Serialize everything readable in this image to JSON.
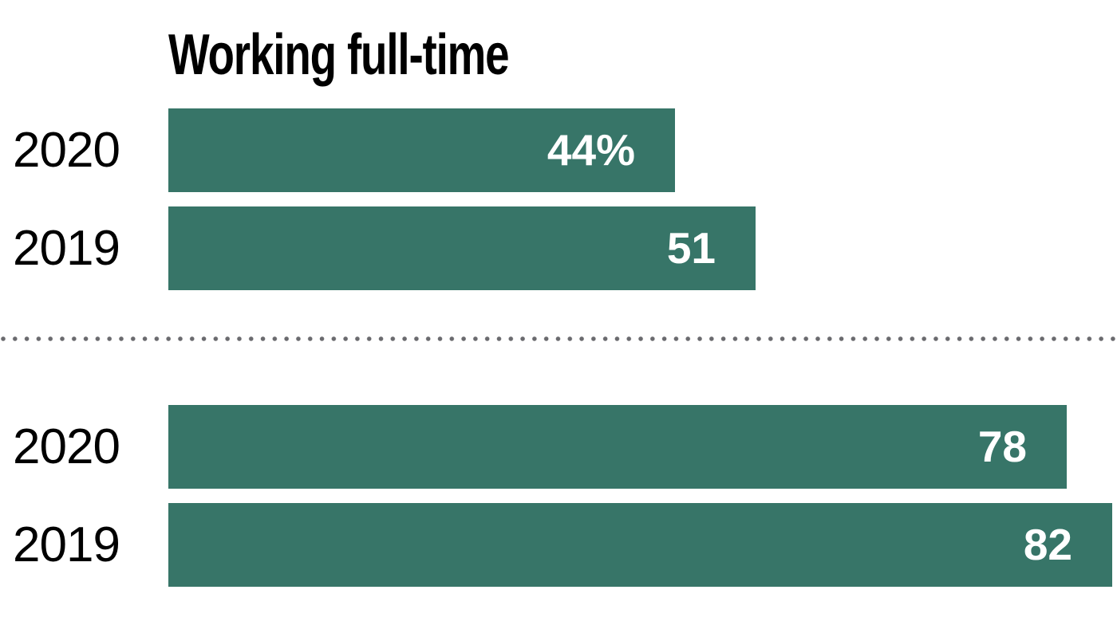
{
  "chart_data": {
    "type": "bar",
    "orientation": "horizontal",
    "title": "Working full-time",
    "value_unit": "percent",
    "categories": [
      "2020",
      "2019"
    ],
    "groups": [
      {
        "rows": [
          {
            "label": "2020",
            "value": 44,
            "value_label": "44%"
          },
          {
            "label": "2019",
            "value": 51,
            "value_label": "51"
          }
        ]
      },
      {
        "rows": [
          {
            "label": "2020",
            "value": 78,
            "value_label": "78"
          },
          {
            "label": "2019",
            "value": 82,
            "value_label": "82"
          }
        ]
      }
    ],
    "xlim": [
      0,
      82.4
    ],
    "grid": false,
    "legend_position": "none",
    "bar_color": "#377568",
    "value_label_color": "#ffffff",
    "category_label_color": "#000000",
    "divider_style": "dotted",
    "divider_color": "#6a6a6e"
  }
}
